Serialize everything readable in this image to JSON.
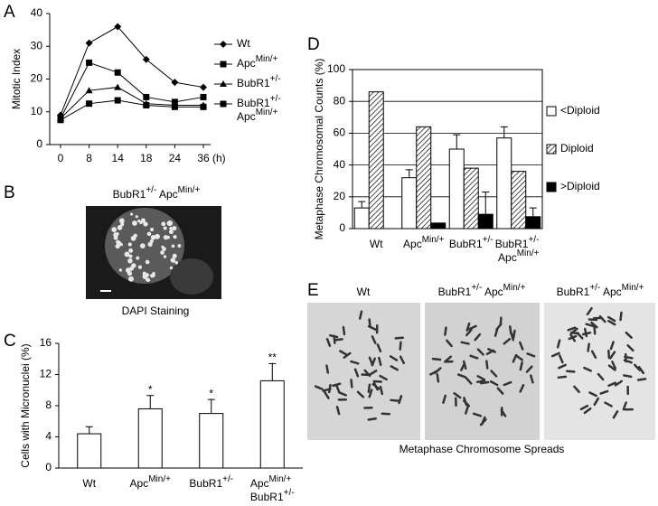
{
  "panel_labels": [
    "A",
    "B",
    "C",
    "D",
    "E"
  ],
  "image_b": {
    "title": "BubR1+/- ApcMin/+",
    "caption": "DAPI Staining"
  },
  "image_e": {
    "labels": [
      "Wt",
      "BubR1+/- ApcMin/+",
      "BubR1+/- ApcMin/+"
    ],
    "caption": "Metaphase Chromosome Spreads"
  },
  "chart_data": [
    {
      "type": "line",
      "ylabel": "Mitotic Index",
      "x_unit": "(h)",
      "categories": [
        "0",
        "8",
        "14",
        "18",
        "24",
        "36"
      ],
      "ylim": [
        0,
        40
      ],
      "yticks": [
        0,
        10,
        20,
        30,
        40
      ],
      "series": [
        {
          "name": "Wt",
          "color": "#000000",
          "marker": "diamond",
          "values": [
            9,
            31,
            36,
            26,
            19,
            17.5
          ]
        },
        {
          "name": "ApcMin/+",
          "color": "#000000",
          "marker": "square",
          "values": [
            8,
            25,
            22,
            14.5,
            13,
            14.5
          ]
        },
        {
          "name": "BubR1+/-",
          "color": "#000000",
          "marker": "triangle",
          "values": [
            8,
            16.5,
            17.5,
            12.5,
            12,
            12
          ]
        },
        {
          "name": "BubR1+/- ApcMin/+",
          "color": "#000000",
          "marker": "square",
          "values": [
            7.5,
            12.5,
            13.5,
            12,
            11.5,
            11.5
          ]
        }
      ]
    },
    {
      "type": "bar",
      "ylabel": "Cells with Micronuclei (%)",
      "categories": [
        "Wt",
        "ApcMin/+",
        "BubR1+/-",
        "ApcMin/+ BubR1+/-"
      ],
      "ylim": [
        0,
        16
      ],
      "yticks": [
        0,
        4,
        8,
        12,
        16
      ],
      "series": [
        {
          "color": "#ffffff",
          "values": [
            4.4,
            7.6,
            7.0,
            11.2
          ],
          "errors": [
            0.9,
            1.7,
            1.8,
            2.2
          ]
        }
      ],
      "annotations": [
        null,
        "*",
        "*",
        "**"
      ]
    },
    {
      "type": "bar",
      "ylabel": "Metaphase Chromosomal Counts (%)",
      "grid": true,
      "legend": "right",
      "categories": [
        "Wt",
        "ApcMin/+",
        "BubR1+/-",
        "BubR1+/- ApcMin/+"
      ],
      "ylim": [
        0,
        100
      ],
      "yticks": [
        0,
        20,
        40,
        60,
        80,
        100
      ],
      "series": [
        {
          "name": "<Diploid",
          "color": "#ffffff",
          "values": [
            13,
            32,
            50,
            57
          ],
          "errors": [
            4,
            5,
            9,
            7
          ]
        },
        {
          "name": "Diploid",
          "color": "#ffffff",
          "hatch": true,
          "values": [
            86,
            64,
            38,
            36
          ]
        },
        {
          "name": ">Diploid",
          "color": "#000000",
          "values": [
            0,
            3.5,
            9,
            7.5
          ],
          "errors": [
            null,
            null,
            14,
            5.5
          ]
        }
      ]
    }
  ]
}
